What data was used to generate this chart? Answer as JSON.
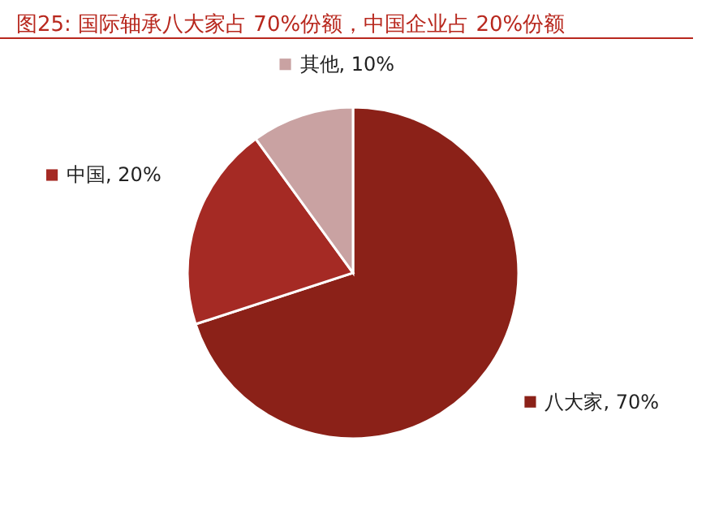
{
  "chart_data": {
    "type": "pie",
    "title": "图25:  国际轴承八大家占 70%份额，中国企业占 20%份额",
    "categories": [
      "八大家",
      "中国",
      "其他"
    ],
    "values": [
      70,
      20,
      10
    ],
    "value_labels": [
      "70%",
      "20%",
      "10%"
    ],
    "colors": [
      "#8b2118",
      "#a52a24",
      "#c9a2a2"
    ],
    "legend": "right"
  }
}
